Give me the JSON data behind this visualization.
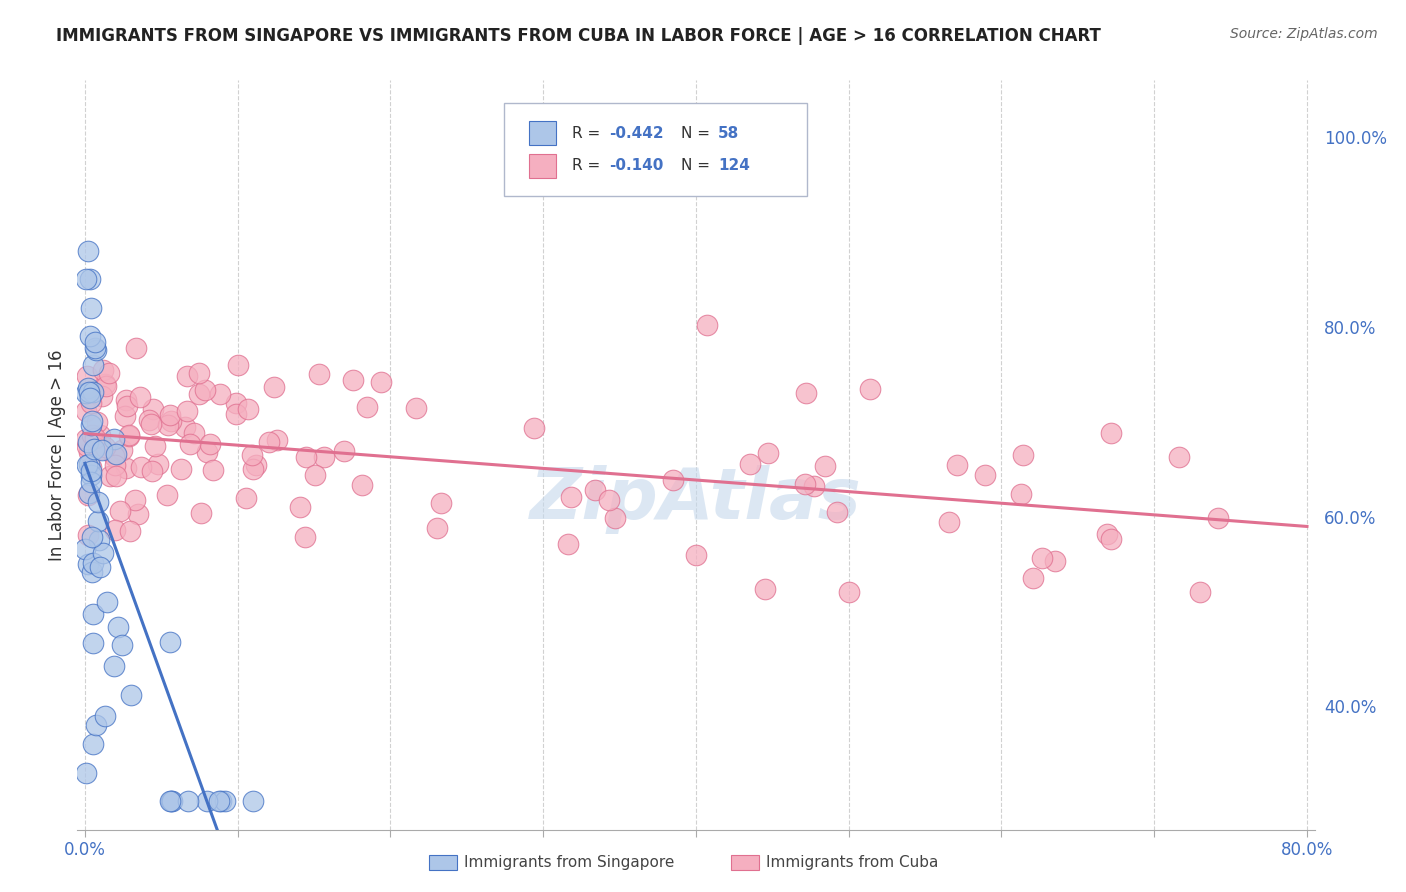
{
  "title": "IMMIGRANTS FROM SINGAPORE VS IMMIGRANTS FROM CUBA IN LABOR FORCE | AGE > 16 CORRELATION CHART",
  "source": "Source: ZipAtlas.com",
  "ylabel": "In Labor Force | Age > 16",
  "xlim": [
    -0.005,
    0.805
  ],
  "ylim": [
    0.27,
    1.06
  ],
  "xticks": [
    0.0,
    0.1,
    0.2,
    0.3,
    0.4,
    0.5,
    0.6,
    0.7,
    0.8
  ],
  "xticklabels": [
    "0.0%",
    "",
    "",
    "",
    "",
    "",
    "",
    "",
    "80.0%"
  ],
  "yticks_right": [
    1.0,
    0.8,
    0.6,
    0.4
  ],
  "yticklabels_right": [
    "100.0%",
    "80.0%",
    "60.0%",
    "40.0%"
  ],
  "legend_r1": "R = -0.442",
  "legend_n1": "N =  58",
  "legend_r2": "R = -0.140",
  "legend_n2": "N = 124",
  "singapore_fill": "#adc6e8",
  "cuba_fill": "#f5afc0",
  "singapore_edge": "#4472c4",
  "cuba_edge": "#e07090",
  "singapore_line": "#4472c4",
  "cuba_line": "#e07090",
  "bg_color": "#ffffff",
  "grid_color": "#cccccc",
  "text_color_blue": "#4472c4",
  "text_color_dark": "#333333",
  "watermark_color": "#c5d8ec"
}
